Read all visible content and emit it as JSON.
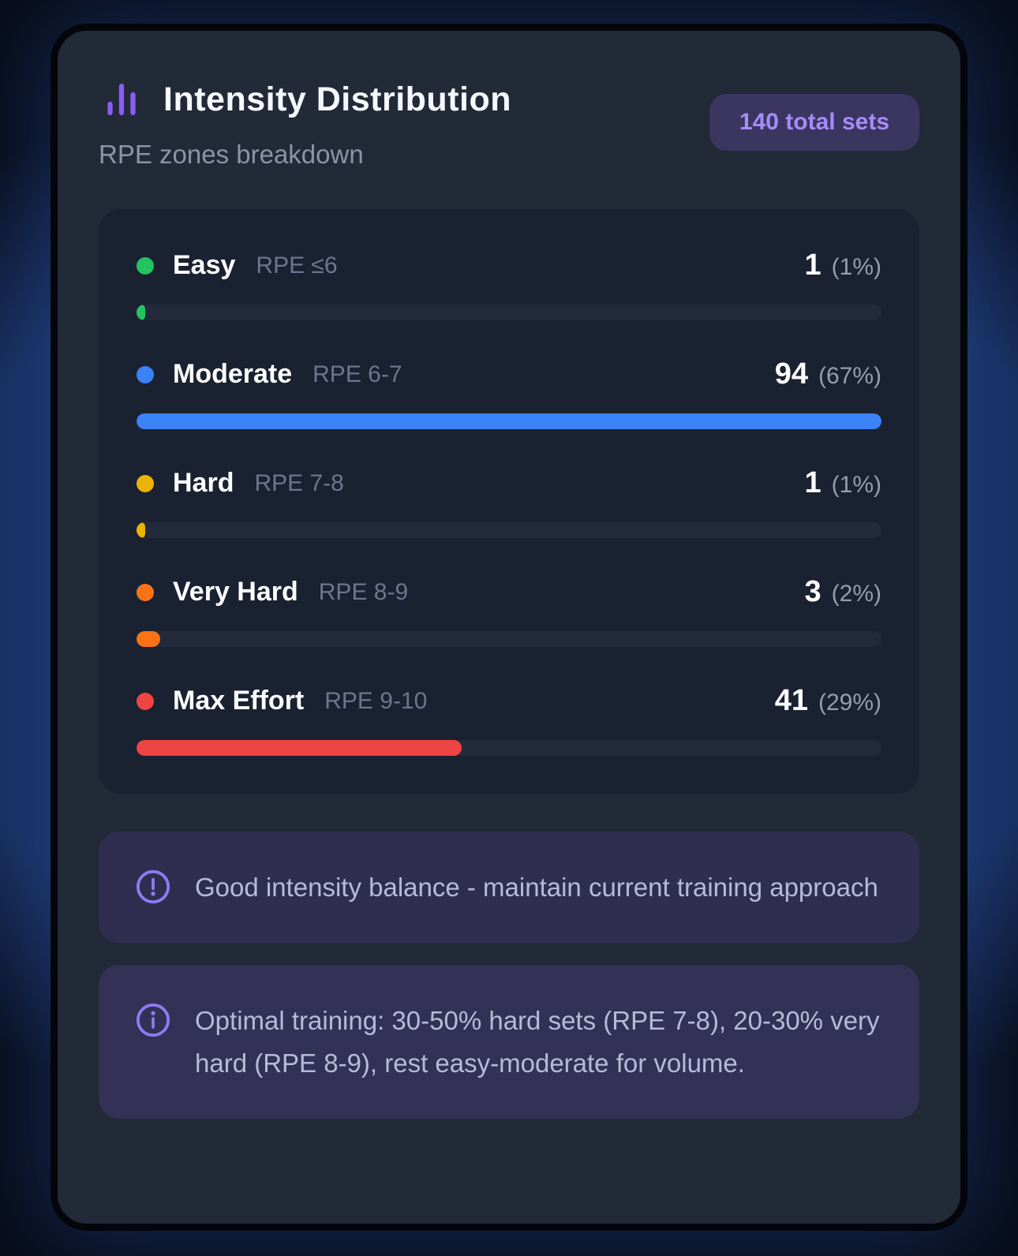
{
  "header": {
    "title": "Intensity Distribution",
    "subtitle": "RPE zones breakdown",
    "badge": "140 total sets"
  },
  "chart_data": {
    "type": "bar",
    "title": "Intensity Distribution",
    "subtitle": "RPE zones breakdown",
    "total_sets": 140,
    "categories": [
      "Easy",
      "Moderate",
      "Hard",
      "Very Hard",
      "Max Effort"
    ],
    "values": [
      1,
      94,
      1,
      3,
      41
    ],
    "bar_scale": "relative-to-max-value",
    "zones": [
      {
        "label": "Easy",
        "rpe": "RPE ≤6",
        "count": 1,
        "percent_label": "(1%)",
        "color": "#22c55e"
      },
      {
        "label": "Moderate",
        "rpe": "RPE 6-7",
        "count": 94,
        "percent_label": "(67%)",
        "color": "#3b82f6"
      },
      {
        "label": "Hard",
        "rpe": "RPE 7-8",
        "count": 1,
        "percent_label": "(1%)",
        "color": "#eab308"
      },
      {
        "label": "Very Hard",
        "rpe": "RPE 8-9",
        "count": 3,
        "percent_label": "(2%)",
        "color": "#f97316"
      },
      {
        "label": "Max Effort",
        "rpe": "RPE 9-10",
        "count": 41,
        "percent_label": "(29%)",
        "color": "#ef4444"
      }
    ]
  },
  "notes": [
    {
      "icon": "alert-circle-icon",
      "text": "Good intensity balance - maintain current training approach"
    },
    {
      "icon": "info-icon",
      "text": "Optimal training: 30-50% hard sets (RPE 7-8), 20-30% very hard (RPE 8-9), rest easy-moderate for volume."
    }
  ],
  "colors": {
    "accent_purple": "#8b5cf6",
    "badge_bg": "#3a3660",
    "badge_text": "#a78bfa",
    "card_bg": "#222937",
    "panel_bg": "#1a2130",
    "track_bg": "#222a3c",
    "note_bg": "#302e50"
  }
}
